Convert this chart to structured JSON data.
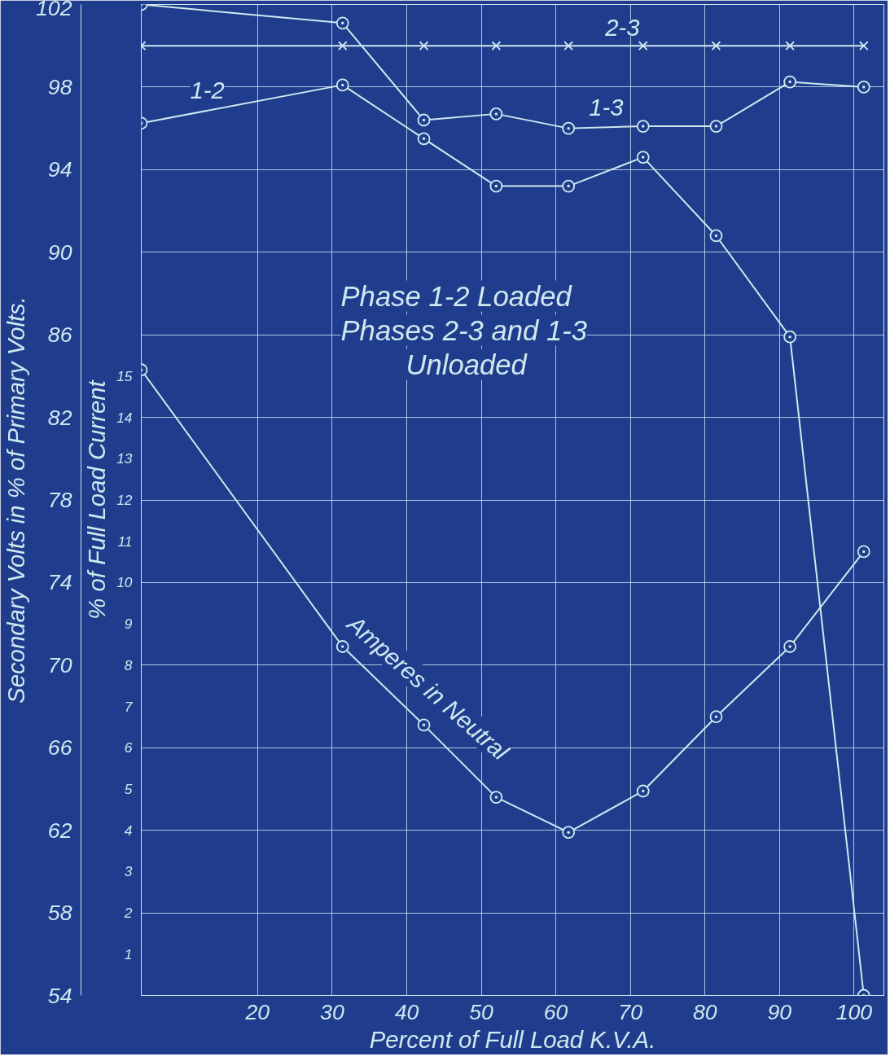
{
  "chart_data": {
    "type": "line",
    "xlabel": "Percent of Full Load K.V.A.",
    "ylabel": "Secondary Volts in % of Primary Volts.",
    "y2label": "% of Full Load Current",
    "x": [
      4.4,
      31.4,
      42.3,
      52.0,
      61.7,
      71.7,
      81.5,
      91.4,
      101.3
    ],
    "xlim": [
      4.4,
      104
    ],
    "xticks": [
      20,
      30,
      40,
      50,
      60,
      70,
      80,
      90,
      100
    ],
    "ylim": [
      54,
      102
    ],
    "yticks": [
      54,
      58,
      62,
      66,
      70,
      74,
      78,
      82,
      86,
      90,
      94,
      98,
      102
    ],
    "y2lim": [
      0,
      24
    ],
    "y2ticks": [
      1,
      2,
      3,
      4,
      5,
      6,
      7,
      8,
      9,
      10,
      11,
      12,
      13,
      14,
      15
    ],
    "grid": true,
    "line_style": "solid",
    "series": [
      {
        "name": "2-3",
        "color": "#cfe8f0",
        "marker": "cross",
        "values": [
          100,
          100,
          100,
          100,
          100,
          100,
          100,
          100,
          100
        ]
      },
      {
        "name": "1-2",
        "color": "#cfe8f0",
        "marker": "circle",
        "values": [
          96.25,
          98.1,
          95.5,
          93.2,
          93.2,
          94.6,
          90.8,
          85.9,
          54
        ]
      },
      {
        "name": "1-3",
        "color": "#cfe8f0",
        "marker": "circle",
        "values": [
          102,
          101.1,
          96.4,
          96.7,
          96.0,
          96.1,
          96.1,
          98.25,
          98.0
        ]
      },
      {
        "name": "Amperes in Neutral",
        "color": "#cfe8f0",
        "marker": "circle",
        "axis": "y2",
        "values": [
          15.15,
          8.45,
          6.55,
          4.8,
          3.95,
          4.95,
          6.75,
          8.45,
          10.75
        ]
      }
    ],
    "annotations": [
      "Phase 1-2 Loaded",
      "Phases 2-3 and 1-3",
      "Unloaded"
    ]
  }
}
